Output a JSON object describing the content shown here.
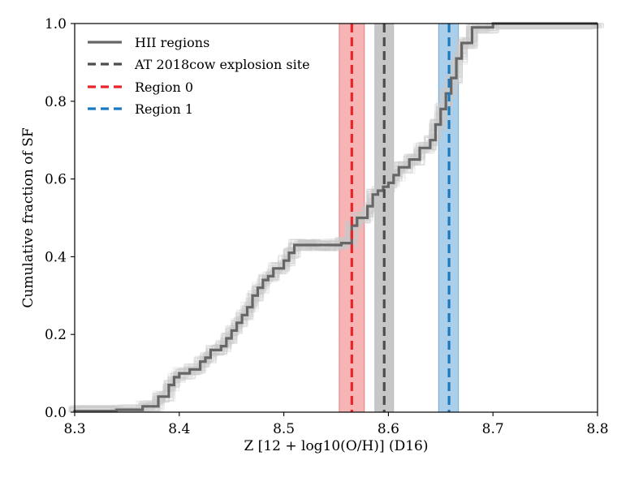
{
  "chart_data": {
    "type": "line",
    "xlabel": "Z [12 + log10(O/H)] (D16)",
    "ylabel": "Cumulative fraction of SF",
    "xlim": [
      8.3,
      8.8
    ],
    "ylim": [
      0.0,
      1.0
    ],
    "xticks": [
      "8.3",
      "8.4",
      "8.5",
      "8.6",
      "8.7",
      "8.8"
    ],
    "yticks": [
      "0.0",
      "0.2",
      "0.4",
      "0.6",
      "0.8",
      "1.0"
    ],
    "grid": false,
    "legend_position": "top-left",
    "series": [
      {
        "name": "HII regions",
        "style": "solid-step",
        "color": "#666666",
        "x": [
          8.3,
          8.34,
          8.365,
          8.38,
          8.39,
          8.395,
          8.4,
          8.41,
          8.42,
          8.425,
          8.43,
          8.44,
          8.445,
          8.45,
          8.455,
          8.46,
          8.465,
          8.47,
          8.475,
          8.48,
          8.485,
          8.49,
          8.5,
          8.505,
          8.51,
          8.52,
          8.525,
          8.53,
          8.545,
          8.555,
          8.565,
          8.57,
          8.58,
          8.585,
          8.59,
          8.595,
          8.6,
          8.605,
          8.61,
          8.62,
          8.63,
          8.64,
          8.645,
          8.65,
          8.655,
          8.66,
          8.665,
          8.67,
          8.68,
          8.7,
          8.8
        ],
        "y": [
          0.003,
          0.006,
          0.015,
          0.04,
          0.07,
          0.09,
          0.1,
          0.11,
          0.13,
          0.14,
          0.16,
          0.17,
          0.19,
          0.21,
          0.23,
          0.25,
          0.27,
          0.3,
          0.32,
          0.34,
          0.35,
          0.37,
          0.39,
          0.41,
          0.43,
          0.43,
          0.43,
          0.43,
          0.43,
          0.435,
          0.48,
          0.5,
          0.53,
          0.56,
          0.57,
          0.58,
          0.59,
          0.61,
          0.63,
          0.65,
          0.68,
          0.7,
          0.74,
          0.78,
          0.82,
          0.86,
          0.91,
          0.95,
          0.99,
          1.0,
          1.0
        ]
      },
      {
        "name": "AT 2018cow explosion site",
        "style": "dashed-vline",
        "color": "#4d4d4d",
        "x": 8.596,
        "band": [
          8.587,
          8.605
        ]
      },
      {
        "name": "Region 0",
        "style": "dashed-vline",
        "color": "#e8262a",
        "x": 8.565,
        "band": [
          8.553,
          8.577
        ]
      },
      {
        "name": "Region 1",
        "style": "dashed-vline",
        "color": "#1a7abf",
        "x": 8.658,
        "band": [
          8.648,
          8.667
        ]
      }
    ]
  },
  "colors": {
    "hii": "#666666",
    "explosion": "#4d4d4d",
    "explosion_band": "#bdbdbd",
    "region0": "#e8262a",
    "region0_band": "#f4a7a8",
    "region1": "#1a7abf",
    "region1_band": "#9cc7e6",
    "realizations": "#c8c8c8"
  }
}
